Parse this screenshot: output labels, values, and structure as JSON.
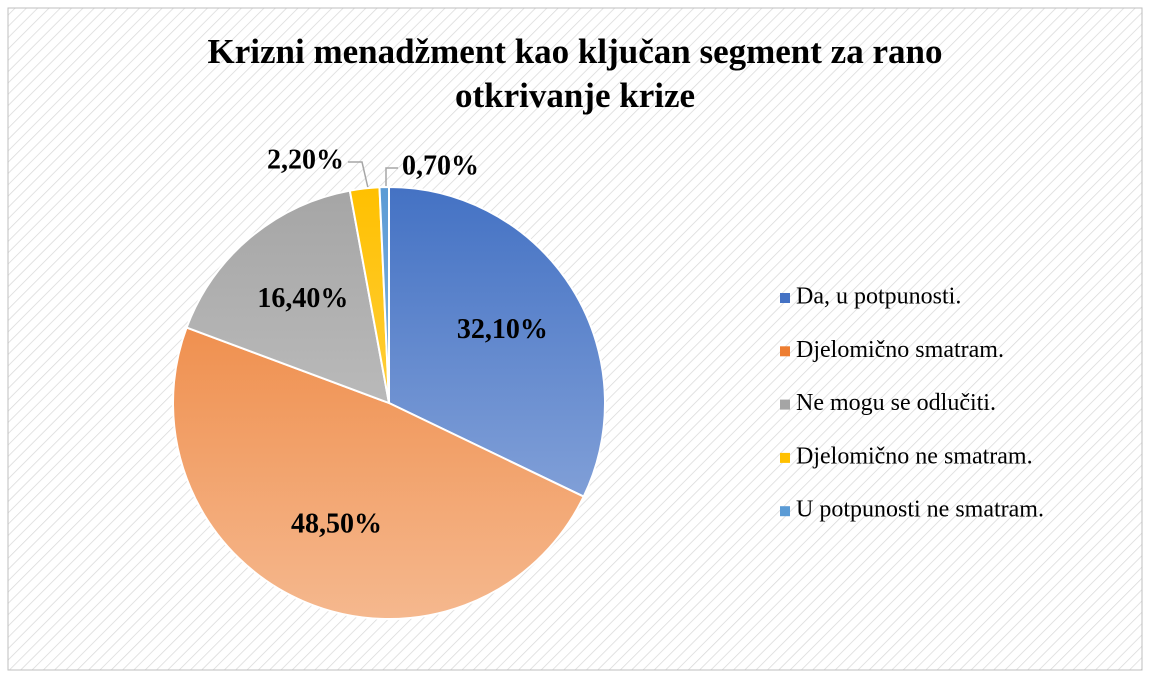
{
  "chart_data": {
    "type": "pie",
    "title": "Krizni menadžment kao ključan segment za rano otkrivanje krize",
    "categories": [
      "Da, u potpunosti.",
      "Djelomično smatram.",
      "Ne mogu se odlučiti.",
      "Djelomično ne smatram.",
      "U potpunosti ne smatram."
    ],
    "values": [
      32.1,
      48.5,
      16.4,
      2.2,
      0.7
    ],
    "value_labels": [
      "32,10%",
      "48,50%",
      "16,40%",
      "2,20%",
      "0,70%"
    ],
    "colors": [
      "#4472c4",
      "#ed7d31",
      "#a5a5a5",
      "#ffc000",
      "#5b9bd5"
    ],
    "legend": "right"
  }
}
